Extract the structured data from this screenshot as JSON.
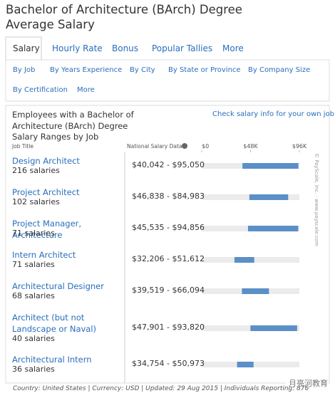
{
  "header": {
    "title": "Bachelor of Architecture (BArch) Degree Average Salary"
  },
  "tabs": [
    "Salary",
    "Hourly Rate",
    "Bonus",
    "Popular Tallies",
    "More"
  ],
  "subnav": [
    "By Job",
    "By Years Experience",
    "By City",
    "By State or Province",
    "By Company Size",
    "By Certification",
    "More"
  ],
  "panel": {
    "heading": "Employees with a Bachelor of Architecture (BArch) Degree",
    "subheading": "Salary Ranges by Job",
    "link": "Check salary info for your own job »",
    "col_job": "Job Title",
    "col_data": "National Salary Data",
    "axis": {
      "lim": [
        0,
        96000
      ],
      "ticks": [
        {
          "value": 0,
          "label": "$0"
        },
        {
          "value": 48000,
          "label": "$48K"
        },
        {
          "value": 96000,
          "label": "$96K"
        }
      ]
    },
    "rows": [
      {
        "job": "Design Architect",
        "count": "216 salaries",
        "range": "$40,042 - $95,050",
        "low": 40042,
        "high": 95050
      },
      {
        "job": "Project Architect",
        "count": "102 salaries",
        "range": "$46,838 - $84,983",
        "low": 46838,
        "high": 84983
      },
      {
        "job": "Project Manager, Architecture",
        "count": "71 salaries",
        "range": "$45,535 - $94,856",
        "low": 45535,
        "high": 94856
      },
      {
        "job": "Intern Architect",
        "count": "71 salaries",
        "range": "$32,206 - $51,612",
        "low": 32206,
        "high": 51612
      },
      {
        "job": "Architectural Designer",
        "count": "68 salaries",
        "range": "$39,519 - $66,094",
        "low": 39519,
        "high": 66094
      },
      {
        "job": "Architect (but not Landscape or Naval)",
        "count": "40 salaries",
        "range": "$47,901 - $93,820",
        "low": 47901,
        "high": 93820
      },
      {
        "job": "Architectural Intern",
        "count": "36 salaries",
        "range": "$34,754 - $50,973",
        "low": 34754,
        "high": 50973
      }
    ],
    "watermark": "© PayScale, Inc. · www.payscale.com",
    "footer": "Country: United States | Currency: USD | Updated: 29 Aug 2015 | Individuals Reporting: 876"
  },
  "badge": "月亮河教育"
}
